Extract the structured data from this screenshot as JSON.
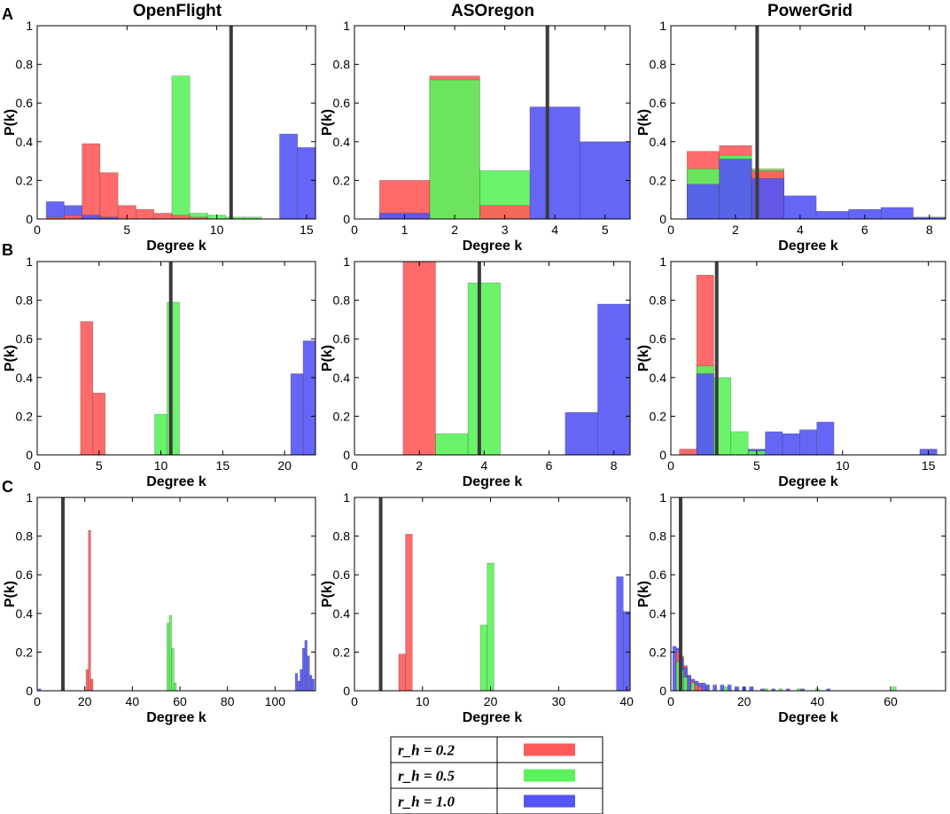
{
  "columns": [
    "OpenFlight",
    "ASOregon",
    "PowerGrid"
  ],
  "rows": [
    "A",
    "B",
    "C"
  ],
  "colors": {
    "r0.2": "#ff5a5a",
    "r0.5": "#5cf25c",
    "r1.0": "#5555f5",
    "overlap_green_red": "#5fb62a",
    "overlap_blue_dark": "#1c3f9c",
    "avg_line": "#3c3c3c"
  },
  "legend": {
    "entries": [
      {
        "key": "r0.2",
        "label": "r_h = 0.2"
      },
      {
        "key": "r0.5",
        "label": "r_h = 0.5"
      },
      {
        "key": "r1.0",
        "label": "r_h = 1.0"
      }
    ]
  },
  "chart_data": [
    {
      "type": "bar",
      "row": "A",
      "network": "OpenFlight",
      "xlabel": "Degree k",
      "ylabel": "P(k)",
      "xlim": [
        0,
        15.5
      ],
      "ylim": [
        0,
        1
      ],
      "xticks": [
        0,
        5,
        10,
        15
      ],
      "yticks": [
        0,
        0.2,
        0.4,
        0.6,
        0.8,
        1
      ],
      "mean_degree_line": 10.8,
      "bar_width": 1,
      "series": [
        {
          "name": "r_h = 0.2",
          "key": "r0.2",
          "x": [
            1,
            2,
            3,
            4,
            5,
            6,
            7,
            8,
            9
          ],
          "values": [
            0.01,
            0.02,
            0.39,
            0.24,
            0.07,
            0.05,
            0.03,
            0.02,
            0.01
          ]
        },
        {
          "name": "r_h = 0.5",
          "key": "r0.5",
          "x": [
            8,
            9,
            10,
            11,
            12
          ],
          "values": [
            0.74,
            0.03,
            0.02,
            0.01,
            0.01
          ]
        },
        {
          "name": "r_h = 1.0",
          "key": "r1.0",
          "x": [
            1,
            2,
            3,
            4,
            14,
            15
          ],
          "values": [
            0.09,
            0.07,
            0.02,
            0.01,
            0.44,
            0.37
          ]
        }
      ]
    },
    {
      "type": "bar",
      "row": "A",
      "network": "ASOregon",
      "xlabel": "Degree k",
      "ylabel": "P(k)",
      "xlim": [
        0,
        5.5
      ],
      "ylim": [
        0,
        1
      ],
      "xticks": [
        0,
        1,
        2,
        3,
        4,
        5
      ],
      "yticks": [
        0,
        0.2,
        0.4,
        0.6,
        0.8,
        1
      ],
      "mean_degree_line": 3.85,
      "bar_width": 1,
      "series": [
        {
          "name": "r_h = 0.2",
          "key": "r0.2",
          "x": [
            1,
            2,
            3
          ],
          "values": [
            0.2,
            0.74,
            0.07
          ]
        },
        {
          "name": "r_h = 0.5",
          "key": "r0.5",
          "x": [
            2,
            3
          ],
          "values": [
            0.72,
            0.25
          ]
        },
        {
          "name": "r_h = 1.0",
          "key": "r1.0",
          "x": [
            1,
            4,
            5
          ],
          "values": [
            0.03,
            0.58,
            0.4
          ]
        }
      ]
    },
    {
      "type": "bar",
      "row": "A",
      "network": "PowerGrid",
      "xlabel": "Degree k",
      "ylabel": "P(k)",
      "xlim": [
        0,
        8.5
      ],
      "ylim": [
        0,
        1
      ],
      "xticks": [
        0,
        2,
        4,
        6,
        8
      ],
      "yticks": [
        0,
        0.2,
        0.4,
        0.6,
        0.8,
        1
      ],
      "mean_degree_line": 2.67,
      "bar_width": 1,
      "series": [
        {
          "name": "r_h = 0.2",
          "key": "r0.2",
          "x": [
            1,
            2,
            3
          ],
          "values": [
            0.35,
            0.38,
            0.25
          ]
        },
        {
          "name": "r_h = 0.5",
          "key": "r0.5",
          "x": [
            1,
            2,
            3
          ],
          "values": [
            0.26,
            0.33,
            0.26
          ]
        },
        {
          "name": "r_h = 1.0",
          "key": "r1.0",
          "x": [
            1,
            2,
            3,
            4,
            5,
            6,
            7,
            8
          ],
          "values": [
            0.18,
            0.31,
            0.21,
            0.12,
            0.04,
            0.05,
            0.06,
            0.01
          ]
        }
      ]
    },
    {
      "type": "bar",
      "row": "B",
      "network": "OpenFlight",
      "xlabel": "Degree k",
      "ylabel": "P(k)",
      "xlim": [
        0,
        22.5
      ],
      "ylim": [
        0,
        1
      ],
      "xticks": [
        0,
        5,
        10,
        15,
        20
      ],
      "yticks": [
        0,
        0.2,
        0.4,
        0.6,
        0.8,
        1
      ],
      "mean_degree_line": 10.8,
      "bar_width": 1,
      "series": [
        {
          "name": "r_h = 0.2",
          "key": "r0.2",
          "x": [
            4,
            5
          ],
          "values": [
            0.69,
            0.32
          ]
        },
        {
          "name": "r_h = 0.5",
          "key": "r0.5",
          "x": [
            10,
            11
          ],
          "values": [
            0.21,
            0.79
          ]
        },
        {
          "name": "r_h = 1.0",
          "key": "r1.0",
          "x": [
            21,
            22
          ],
          "values": [
            0.42,
            0.59
          ]
        }
      ]
    },
    {
      "type": "bar",
      "row": "B",
      "network": "ASOregon",
      "xlabel": "Degree k",
      "ylabel": "P(k)",
      "xlim": [
        0,
        8.5
      ],
      "ylim": [
        0,
        1
      ],
      "xticks": [
        0,
        2,
        4,
        6,
        8
      ],
      "yticks": [
        0,
        0.2,
        0.4,
        0.6,
        0.8,
        1
      ],
      "mean_degree_line": 3.85,
      "bar_width": 1,
      "series": [
        {
          "name": "r_h = 0.2",
          "key": "r0.2",
          "x": [
            2
          ],
          "values": [
            1.0
          ]
        },
        {
          "name": "r_h = 0.5",
          "key": "r0.5",
          "x": [
            3,
            4
          ],
          "values": [
            0.11,
            0.89
          ]
        },
        {
          "name": "r_h = 1.0",
          "key": "r1.0",
          "x": [
            7,
            8
          ],
          "values": [
            0.22,
            0.78
          ]
        }
      ]
    },
    {
      "type": "bar",
      "row": "B",
      "network": "PowerGrid",
      "xlabel": "Degree k",
      "ylabel": "P(k)",
      "xlim": [
        0,
        16
      ],
      "ylim": [
        0,
        1
      ],
      "xticks": [
        0,
        5,
        10,
        15
      ],
      "yticks": [
        0,
        0.2,
        0.4,
        0.6,
        0.8,
        1
      ],
      "mean_degree_line": 2.67,
      "bar_width": 1,
      "series": [
        {
          "name": "r_h = 0.2",
          "key": "r0.2",
          "x": [
            1,
            2
          ],
          "values": [
            0.03,
            0.93
          ]
        },
        {
          "name": "r_h = 0.5",
          "key": "r0.5",
          "x": [
            2,
            3,
            4,
            5
          ],
          "values": [
            0.46,
            0.4,
            0.12,
            0.02
          ]
        },
        {
          "name": "r_h = 1.0",
          "key": "r1.0",
          "x": [
            2,
            5,
            6,
            7,
            8,
            9,
            15
          ],
          "values": [
            0.42,
            0.03,
            0.12,
            0.11,
            0.13,
            0.17,
            0.03
          ]
        }
      ]
    },
    {
      "type": "bar",
      "row": "C",
      "network": "OpenFlight",
      "xlabel": "Degree k",
      "ylabel": "P(k)",
      "xlim": [
        0,
        117
      ],
      "ylim": [
        0,
        1
      ],
      "xticks": [
        0,
        20,
        40,
        60,
        80,
        100
      ],
      "yticks": [
        0,
        0.2,
        0.4,
        0.6,
        0.8,
        1
      ],
      "mean_degree_line": 10.8,
      "bar_width": 1,
      "series": [
        {
          "name": "r_h = 0.2",
          "key": "r0.2",
          "x": [
            21,
            22,
            23
          ],
          "values": [
            0.11,
            0.83,
            0.06
          ]
        },
        {
          "name": "r_h = 0.5",
          "key": "r0.5",
          "x": [
            55,
            56,
            57,
            58
          ],
          "values": [
            0.35,
            0.39,
            0.22,
            0.04
          ]
        },
        {
          "name": "r_h = 1.0",
          "key": "r1.0",
          "x": [
            1,
            109,
            110,
            111,
            112,
            113,
            114,
            115,
            116
          ],
          "values": [
            0.01,
            0.09,
            0.05,
            0.11,
            0.22,
            0.26,
            0.18,
            0.08,
            0.06
          ]
        }
      ]
    },
    {
      "type": "bar",
      "row": "C",
      "network": "ASOregon",
      "xlabel": "Degree k",
      "ylabel": "P(k)",
      "xlim": [
        0,
        40.5
      ],
      "ylim": [
        0,
        1
      ],
      "xticks": [
        0,
        10,
        20,
        30,
        40
      ],
      "yticks": [
        0,
        0.2,
        0.4,
        0.6,
        0.8,
        1
      ],
      "mean_degree_line": 3.85,
      "bar_width": 1,
      "series": [
        {
          "name": "r_h = 0.2",
          "key": "r0.2",
          "x": [
            7,
            8
          ],
          "values": [
            0.19,
            0.81
          ]
        },
        {
          "name": "r_h = 0.5",
          "key": "r0.5",
          "x": [
            19,
            20
          ],
          "values": [
            0.34,
            0.66
          ]
        },
        {
          "name": "r_h = 1.0",
          "key": "r1.0",
          "x": [
            39,
            40
          ],
          "values": [
            0.59,
            0.41
          ]
        }
      ]
    },
    {
      "type": "bar",
      "row": "C",
      "network": "PowerGrid",
      "xlabel": "Degree k",
      "ylabel": "P(k)",
      "xlim": [
        0,
        75
      ],
      "ylim": [
        0,
        1
      ],
      "xticks": [
        0,
        20,
        40,
        60
      ],
      "yticks": [
        0,
        0.2,
        0.4,
        0.6,
        0.8,
        1
      ],
      "mean_degree_line": 2.67,
      "bar_width": 1,
      "series": [
        {
          "name": "r_h = 0.2",
          "key": "r0.2",
          "x": [
            2,
            3,
            4,
            5,
            6,
            7,
            8
          ],
          "values": [
            0.2,
            0.18,
            0.13,
            0.08,
            0.05,
            0.03,
            0.02
          ]
        },
        {
          "name": "r_h = 0.5",
          "key": "r0.5",
          "x": [
            2,
            3,
            4,
            6,
            10,
            15,
            18,
            22,
            26,
            30,
            35,
            40,
            61
          ],
          "values": [
            0.15,
            0.11,
            0.07,
            0.04,
            0.03,
            0.02,
            0.02,
            0.02,
            0.01,
            0.01,
            0.01,
            0.01,
            0.02
          ]
        },
        {
          "name": "r_h = 1.0",
          "key": "r1.0",
          "x": [
            1,
            2,
            3,
            4,
            5,
            6,
            7,
            8,
            9,
            10,
            12,
            14,
            16,
            18,
            20,
            22,
            25,
            28,
            32,
            36,
            43
          ],
          "values": [
            0.23,
            0.22,
            0.17,
            0.12,
            0.08,
            0.06,
            0.05,
            0.04,
            0.04,
            0.03,
            0.03,
            0.03,
            0.03,
            0.02,
            0.02,
            0.02,
            0.01,
            0.01,
            0.01,
            0.01,
            0.01
          ]
        }
      ]
    }
  ]
}
